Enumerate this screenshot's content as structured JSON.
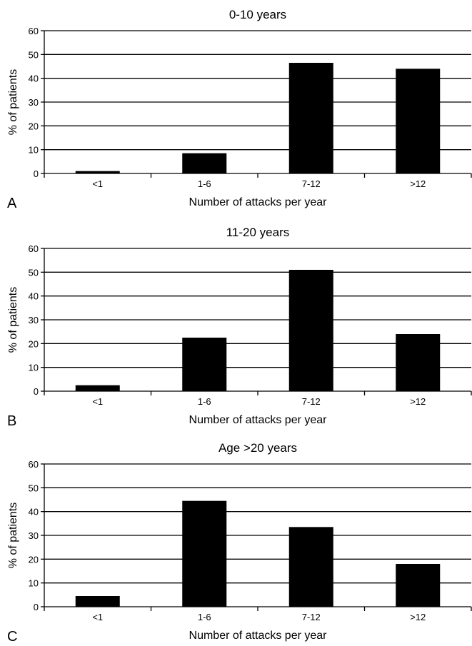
{
  "chart_data": [
    {
      "type": "bar",
      "panel_label": "A",
      "title": "0-10 years",
      "categories": [
        "<1",
        "1-6",
        "7-12",
        ">12"
      ],
      "values": [
        1,
        8.5,
        46.5,
        44
      ],
      "xlabel": "Number of attacks per year",
      "ylabel": "% of patients",
      "ylim": [
        0,
        60
      ],
      "yticks": [
        0,
        10,
        20,
        30,
        40,
        50,
        60
      ],
      "grid": true,
      "bar_color": "#000000"
    },
    {
      "type": "bar",
      "panel_label": "B",
      "title": "11-20 years",
      "categories": [
        "<1",
        "1-6",
        "7-12",
        ">12"
      ],
      "values": [
        2.5,
        22.5,
        51,
        24
      ],
      "xlabel": "Number of attacks per year",
      "ylabel": "% of patients",
      "ylim": [
        0,
        60
      ],
      "yticks": [
        0,
        10,
        20,
        30,
        40,
        50,
        60
      ],
      "grid": true,
      "bar_color": "#000000"
    },
    {
      "type": "bar",
      "panel_label": "C",
      "title": "Age >20 years",
      "categories": [
        "<1",
        "1-6",
        "7-12",
        ">12"
      ],
      "values": [
        4.5,
        44.5,
        33.5,
        18
      ],
      "xlabel": "Number of attacks per year",
      "ylabel": "% of patients",
      "ylim": [
        0,
        60
      ],
      "yticks": [
        0,
        10,
        20,
        30,
        40,
        50,
        60
      ],
      "grid": true,
      "bar_color": "#000000"
    }
  ]
}
